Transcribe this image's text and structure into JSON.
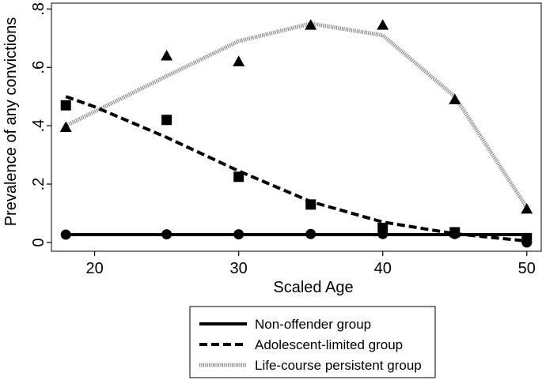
{
  "chart_data": {
    "type": "line",
    "xlabel": "Scaled Age",
    "ylabel": "Prevalence of any convictions",
    "xlim": [
      17,
      51
    ],
    "ylim": [
      -0.03,
      0.82
    ],
    "xticks": [
      20,
      30,
      40,
      50
    ],
    "xtick_labels": [
      "20",
      "30",
      "40",
      "50"
    ],
    "yticks": [
      0,
      0.2,
      0.4,
      0.6,
      0.8
    ],
    "ytick_labels": [
      "0",
      ".2",
      ".4",
      ".6",
      ".8"
    ],
    "grid": false,
    "legend_position": "bottom",
    "series": [
      {
        "name": "Non-offender group",
        "line_style": "solid",
        "marker": "circle",
        "color": "#000000",
        "fitted_x": [
          18,
          50
        ],
        "fitted_y": [
          0.027,
          0.027
        ],
        "observed_x": [
          18,
          25,
          30,
          35,
          40,
          45,
          50
        ],
        "observed_y": [
          0.027,
          0.028,
          0.028,
          0.029,
          0.029,
          0.029,
          0.0
        ]
      },
      {
        "name": "Adolescent-limited group",
        "line_style": "dashed",
        "marker": "square",
        "color": "#000000",
        "fitted_x": [
          18,
          20,
          25,
          30,
          35,
          40,
          45,
          50
        ],
        "fitted_y": [
          0.5,
          0.465,
          0.36,
          0.245,
          0.14,
          0.07,
          0.03,
          0.005
        ],
        "observed_x": [
          18,
          25,
          30,
          35,
          40,
          45,
          50
        ],
        "observed_y": [
          0.47,
          0.42,
          0.225,
          0.13,
          0.05,
          0.035,
          0.015
        ]
      },
      {
        "name": "Life-course persistent group",
        "line_style": "dotted",
        "marker": "triangle",
        "color": "#8a8a8a",
        "fitted_x": [
          18,
          25,
          30,
          35,
          40,
          45,
          50
        ],
        "fitted_y": [
          0.4,
          0.57,
          0.69,
          0.75,
          0.71,
          0.5,
          0.12
        ],
        "observed_x": [
          18,
          25,
          30,
          35,
          40,
          45,
          50
        ],
        "observed_y": [
          0.395,
          0.64,
          0.62,
          0.745,
          0.745,
          0.49,
          0.115
        ]
      }
    ]
  }
}
